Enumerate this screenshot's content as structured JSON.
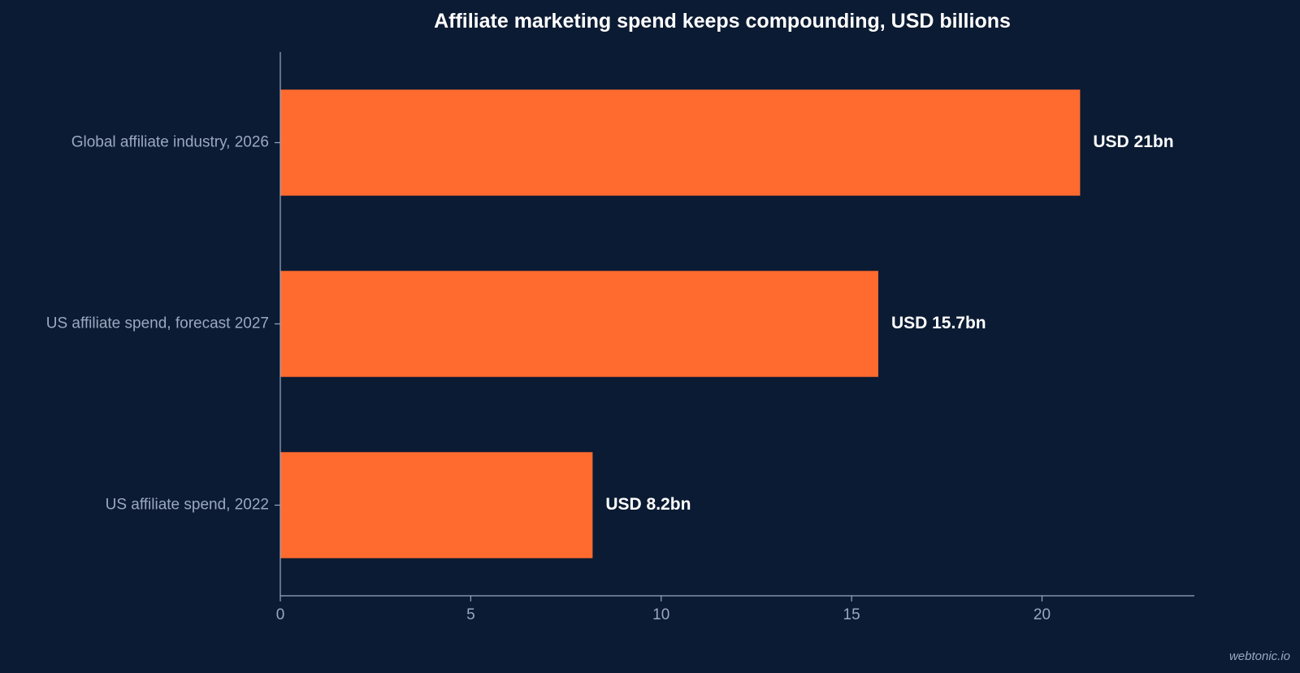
{
  "colors": {
    "background": "#0b1b33",
    "bar": "#ff6b2e",
    "axis": "#9aa8c0",
    "label_text": "#9aa8c0",
    "value_text": "#ffffff"
  },
  "chart_data": {
    "type": "bar",
    "orientation": "horizontal",
    "title": "Affiliate marketing spend keeps compounding, USD billions",
    "xlabel": "",
    "ylabel": "",
    "categories": [
      "Global affiliate industry, 2026",
      "US affiliate spend, forecast 2027",
      "US affiliate spend, 2022"
    ],
    "values": [
      21,
      15.7,
      8.2
    ],
    "data_labels": [
      "USD 21bn",
      "USD 15.7bn",
      "USD 8.2bn"
    ],
    "xlim": [
      0,
      24
    ],
    "xticks": [
      0,
      5,
      10,
      15,
      20
    ],
    "xtick_labels": [
      "0",
      "5",
      "10",
      "15",
      "20"
    ],
    "grid": false,
    "legend": "none"
  },
  "watermark": "webtonic.io"
}
